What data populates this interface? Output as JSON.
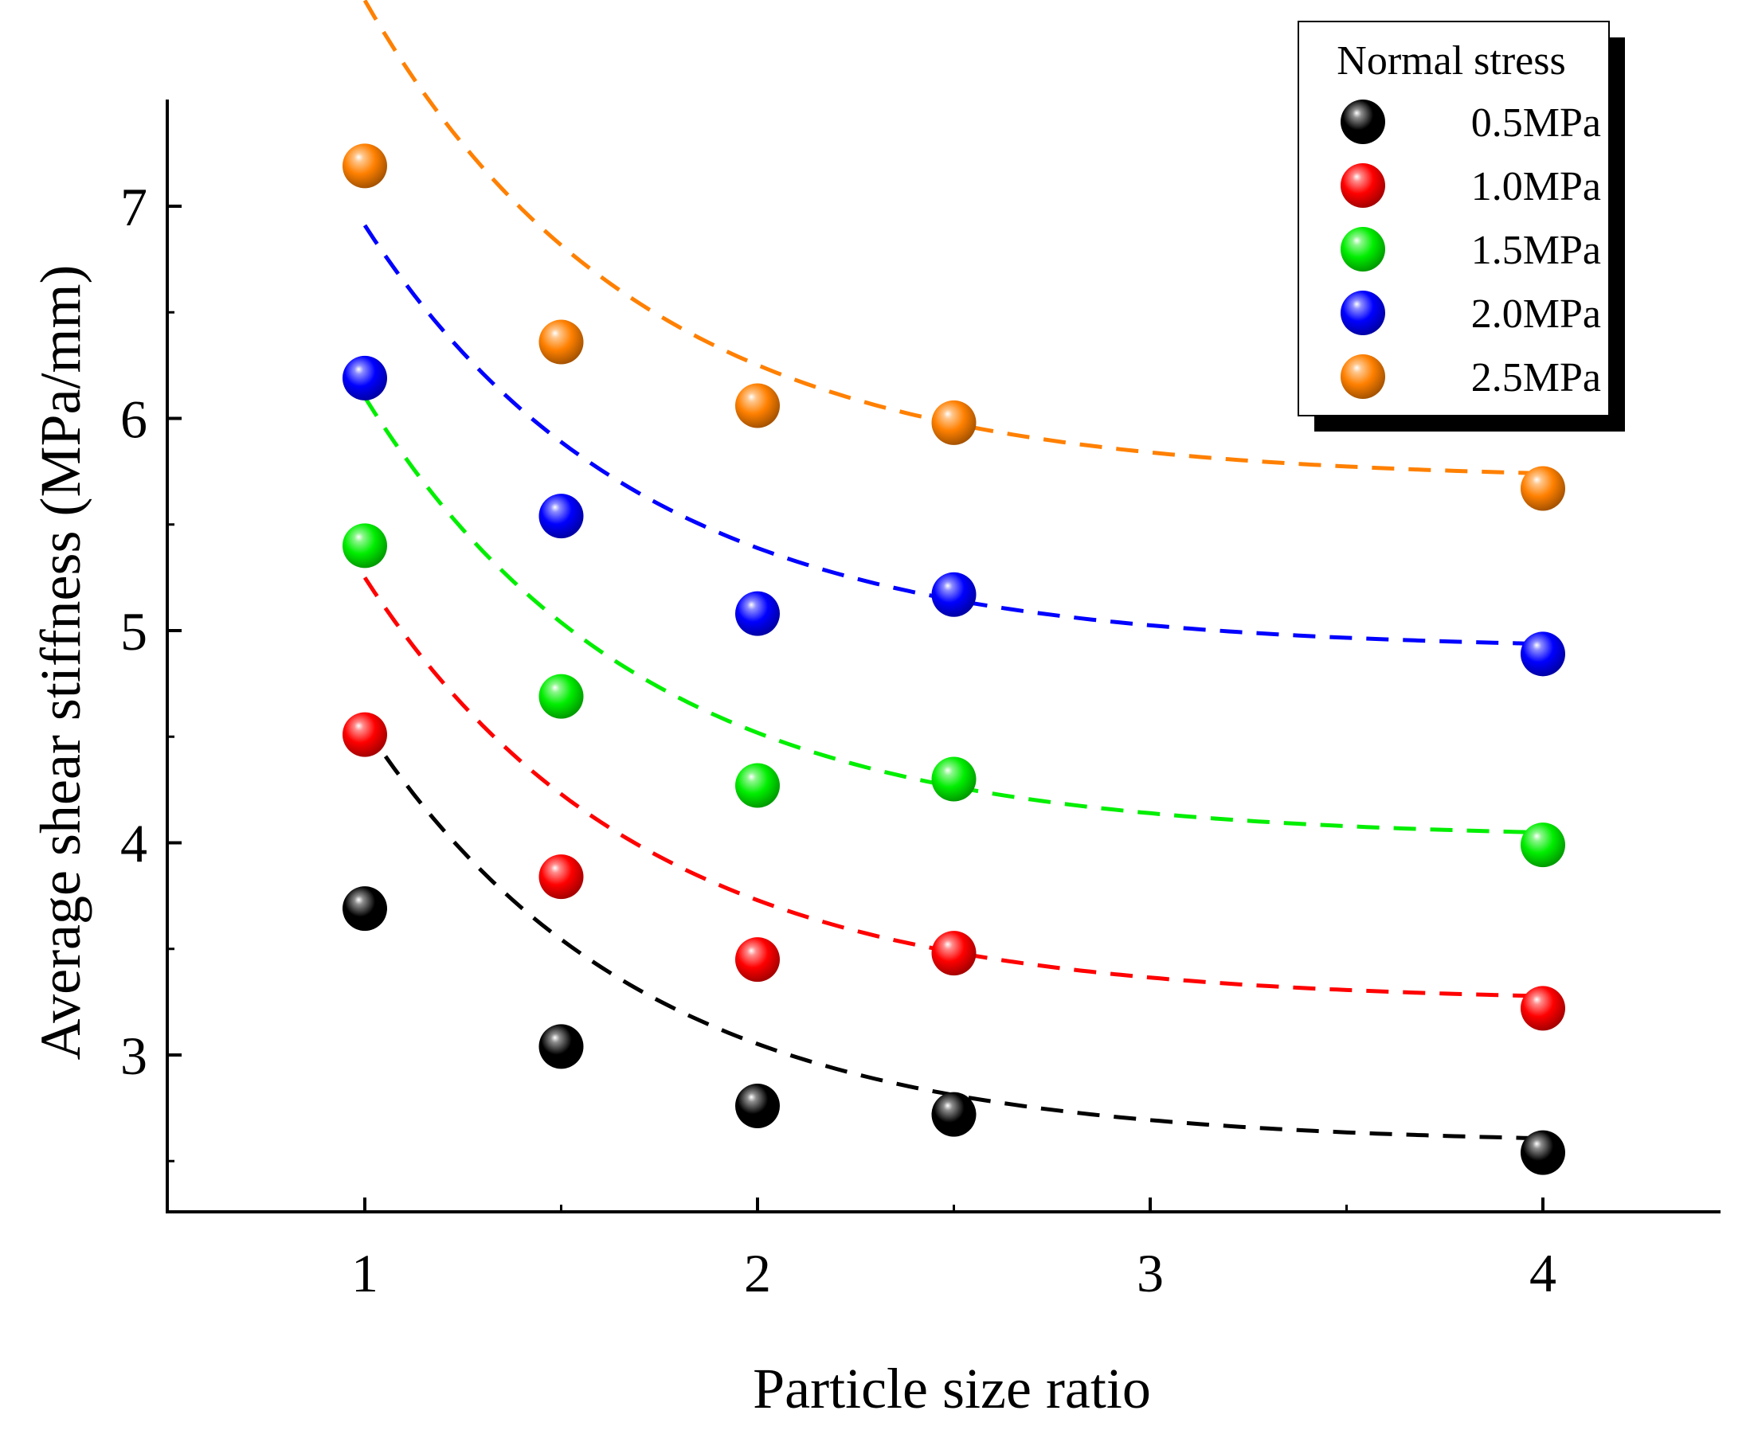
{
  "chart_data": {
    "type": "scatter",
    "title": "",
    "xlabel": "Particle size ratio",
    "ylabel": "Average shear stiffness (MPa/mm)",
    "xlim": [
      0.5,
      4.5
    ],
    "ylim": [
      2.3,
      7.5
    ],
    "xticks": [
      1,
      2,
      3,
      4
    ],
    "xtick_labels": [
      "1",
      "2",
      "3",
      "4"
    ],
    "yticks": [
      3,
      4,
      5,
      6,
      7
    ],
    "ytick_labels": [
      "3",
      "4",
      "5",
      "6",
      "7"
    ],
    "grid": false,
    "x": [
      1,
      1.5,
      2,
      2.5,
      4
    ],
    "fit_curve": "dashed exponential decay fit per series",
    "legend": {
      "title": "Normal stress",
      "position": "top-right"
    },
    "series": [
      {
        "name": "0.5MPa",
        "color": "#000000",
        "values": [
          3.69,
          3.04,
          2.76,
          2.72,
          2.54
        ],
        "fit": {
          "a": 1.97,
          "b": 2.58
        }
      },
      {
        "name": "1.0MPa",
        "color": "#ff0000",
        "values": [
          4.51,
          3.84,
          3.45,
          3.48,
          3.22
        ],
        "fit": {
          "a": 2.0,
          "b": 3.25
        }
      },
      {
        "name": "1.5MPa",
        "color": "#00ee00",
        "values": [
          5.4,
          4.69,
          4.27,
          4.3,
          3.99
        ],
        "fit": {
          "a": 2.08,
          "b": 4.02
        }
      },
      {
        "name": "2.0MPa",
        "color": "#0000ff",
        "values": [
          6.19,
          5.54,
          5.08,
          5.17,
          4.89
        ],
        "fit": {
          "a": 2.0,
          "b": 4.91
        }
      },
      {
        "name": "2.5MPa",
        "color": "#ff8000",
        "values": [
          7.19,
          6.36,
          6.06,
          5.98,
          5.67
        ],
        "fit": {
          "a": 2.26,
          "b": 5.71
        }
      }
    ]
  }
}
